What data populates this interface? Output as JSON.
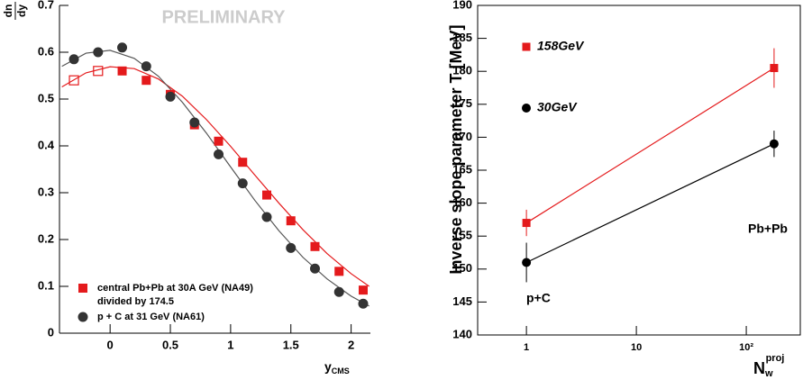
{
  "chart_data": [
    {
      "type": "scatter",
      "watermark": "PRELIMINARY",
      "ylabel": {
        "num": "dn",
        "den": "dy"
      },
      "xlabel": "y",
      "xlabel_sub": "CMS",
      "xlim": [
        -0.42,
        2.16
      ],
      "xticks": [
        0,
        0.5,
        1,
        1.5,
        2
      ],
      "ylim": [
        0,
        0.7
      ],
      "yticks": [
        0,
        0.1,
        0.2,
        0.3,
        0.4,
        0.5,
        0.6,
        0.7
      ],
      "series": [
        {
          "name": "central Pb+Pb at 30A GeV (NA49)",
          "note": "divided by 174.5",
          "color": "#e41a1c",
          "marker": "square",
          "x": [
            -0.3,
            -0.1,
            0.1,
            0.3,
            0.5,
            0.7,
            0.9,
            1.1,
            1.3,
            1.5,
            1.7,
            1.9,
            2.1
          ],
          "values": [
            0.54,
            0.56,
            0.56,
            0.54,
            0.51,
            0.445,
            0.41,
            0.365,
            0.295,
            0.24,
            0.185,
            0.132,
            0.092
          ],
          "filled": [
            false,
            false,
            true,
            true,
            true,
            true,
            true,
            true,
            true,
            true,
            true,
            true,
            true
          ]
        },
        {
          "name": "p + C at 31 GeV (NA61)",
          "color": "#333333",
          "marker": "circle",
          "x": [
            -0.3,
            -0.1,
            0.1,
            0.3,
            0.5,
            0.7,
            0.9,
            1.1,
            1.3,
            1.5,
            1.7,
            1.9,
            2.1
          ],
          "values": [
            0.585,
            0.6,
            0.61,
            0.57,
            0.505,
            0.45,
            0.382,
            0.32,
            0.248,
            0.182,
            0.138,
            0.088,
            0.063
          ],
          "filled": [
            true,
            true,
            true,
            true,
            true,
            true,
            true,
            true,
            true,
            true,
            true,
            true,
            true
          ]
        }
      ],
      "fits": [
        {
          "color": "#e41a1c",
          "x": [
            -0.4,
            -0.2,
            0,
            0.2,
            0.4,
            0.6,
            0.8,
            1.0,
            1.2,
            1.4,
            1.6,
            1.8,
            2.0,
            2.15
          ],
          "values": [
            0.526,
            0.556,
            0.569,
            0.565,
            0.543,
            0.506,
            0.456,
            0.399,
            0.338,
            0.278,
            0.221,
            0.17,
            0.127,
            0.1
          ]
        },
        {
          "color": "#555555",
          "x": [
            -0.4,
            -0.2,
            0,
            0.2,
            0.4,
            0.6,
            0.8,
            1.0,
            1.2,
            1.4,
            1.6,
            1.8,
            2.0,
            2.15
          ],
          "values": [
            0.57,
            0.598,
            0.604,
            0.587,
            0.549,
            0.493,
            0.427,
            0.355,
            0.284,
            0.219,
            0.162,
            0.116,
            0.079,
            0.058
          ]
        }
      ]
    },
    {
      "type": "line",
      "ylabel": "Inverse slope parameter T [MeV]",
      "xlabel": "N",
      "xlabel_sub": "w",
      "xlabel_sup": "proj",
      "xscale": "log",
      "xlim": [
        0.36,
        310
      ],
      "xticks": [
        1,
        10,
        {
          "value": 100,
          "label": "10²"
        }
      ],
      "ylim": [
        140,
        190
      ],
      "yticks": [
        140,
        145,
        150,
        155,
        160,
        165,
        170,
        175,
        180,
        185,
        190
      ],
      "annotations": [
        "p+C",
        "Pb+Pb"
      ],
      "series": [
        {
          "name": "158GeV",
          "color": "#e41a1c",
          "marker": "square",
          "x": [
            1,
            179
          ],
          "values": [
            157,
            180.5
          ],
          "errors": [
            2,
            3
          ]
        },
        {
          "name": "30GeV",
          "color": "#000000",
          "marker": "circle",
          "x": [
            1,
            179
          ],
          "values": [
            151,
            169
          ],
          "errors": [
            3,
            2
          ]
        }
      ]
    }
  ]
}
